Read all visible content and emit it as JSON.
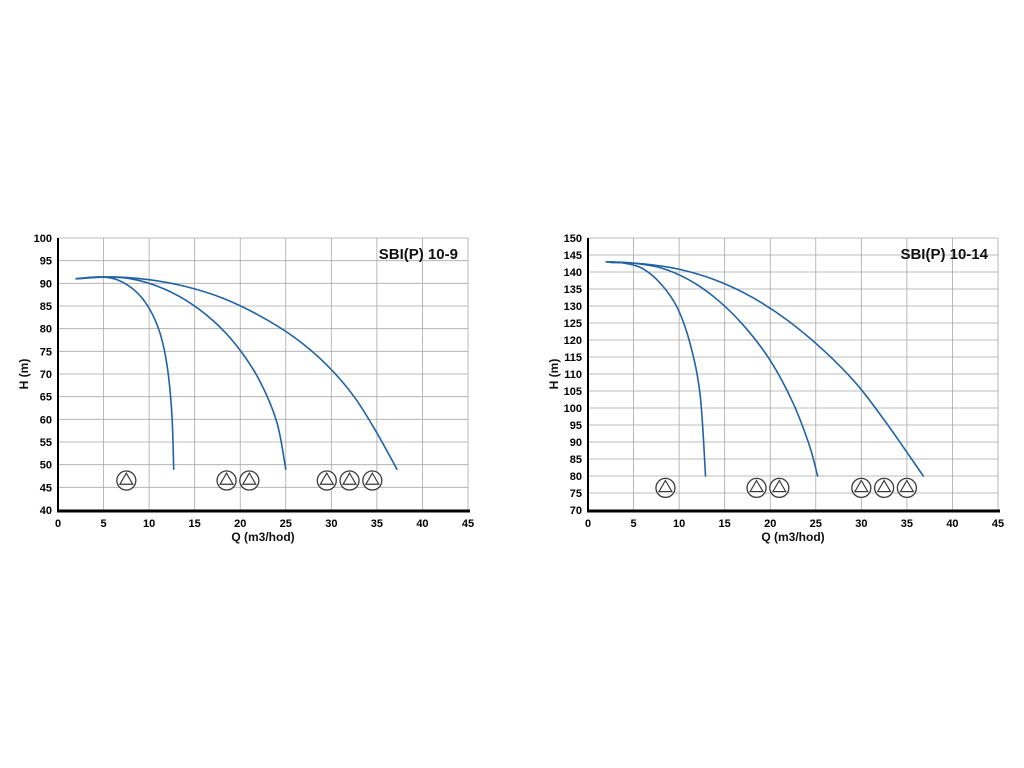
{
  "page": {
    "background": "#ffffff"
  },
  "chart_data": [
    {
      "id": "sbi-p-10-9",
      "type": "line",
      "title": "SBI(P) 10-9",
      "xlabel": "Q (m3/hod)",
      "ylabel": "H (m)",
      "xlim": [
        0,
        45
      ],
      "ylim": [
        40,
        100
      ],
      "xtick_step": 5,
      "ytick_step": 5,
      "grid": true,
      "legend": false,
      "line_color": "#2063a5",
      "grid_color": "#a8a8a8",
      "axis_color": "#000000",
      "series": [
        {
          "name": "1-pump",
          "points": [
            [
              2,
              91
            ],
            [
              4.5,
              91.4
            ],
            [
              6.5,
              90.8
            ],
            [
              8.5,
              88.3
            ],
            [
              10,
              84.5
            ],
            [
              11.2,
              79
            ],
            [
              12,
              71.5
            ],
            [
              12.5,
              61
            ],
            [
              12.7,
              49
            ]
          ]
        },
        {
          "name": "2-pumps",
          "points": [
            [
              2,
              91
            ],
            [
              5,
              91.4
            ],
            [
              8,
              91
            ],
            [
              11,
              89.3
            ],
            [
              14,
              86.3
            ],
            [
              17,
              81.8
            ],
            [
              19.5,
              76.5
            ],
            [
              22,
              69
            ],
            [
              24,
              59.5
            ],
            [
              25,
              49
            ]
          ]
        },
        {
          "name": "3-pumps",
          "points": [
            [
              2,
              91
            ],
            [
              6,
              91.4
            ],
            [
              10,
              90.8
            ],
            [
              14,
              89.3
            ],
            [
              18,
              86.8
            ],
            [
              22,
              83
            ],
            [
              26,
              78
            ],
            [
              29.5,
              72
            ],
            [
              32.5,
              65
            ],
            [
              35,
              57
            ],
            [
              37.2,
              49
            ]
          ]
        }
      ],
      "pump_icons": {
        "y": 46.5,
        "x_groups": [
          [
            7.5
          ],
          [
            18.5,
            21
          ],
          [
            29.5,
            32,
            34.5
          ]
        ]
      }
    },
    {
      "id": "sbi-p-10-14",
      "type": "line",
      "title": "SBI(P) 10-14",
      "xlabel": "Q (m3/hod)",
      "ylabel": "H (m)",
      "xlim": [
        0,
        45
      ],
      "ylim": [
        70,
        150
      ],
      "xtick_step": 5,
      "ytick_step": 5,
      "grid": true,
      "legend": false,
      "line_color": "#2063a5",
      "grid_color": "#a8a8a8",
      "axis_color": "#000000",
      "series": [
        {
          "name": "1-pump",
          "points": [
            [
              2,
              143
            ],
            [
              4,
              142.6
            ],
            [
              6,
              141
            ],
            [
              8,
              136.5
            ],
            [
              9.8,
              129.5
            ],
            [
              11.2,
              119
            ],
            [
              12.3,
              104
            ],
            [
              12.9,
              80
            ]
          ]
        },
        {
          "name": "2-pumps",
          "points": [
            [
              2,
              143
            ],
            [
              5,
              142.6
            ],
            [
              8,
              141.2
            ],
            [
              11,
              137.8
            ],
            [
              14,
              132.3
            ],
            [
              17,
              124.5
            ],
            [
              20,
              114
            ],
            [
              22.5,
              101.5
            ],
            [
              24.3,
              89
            ],
            [
              25.2,
              80
            ]
          ]
        },
        {
          "name": "3-pumps",
          "points": [
            [
              2.5,
              142.8
            ],
            [
              6,
              142.4
            ],
            [
              10,
              140.8
            ],
            [
              14,
              137.6
            ],
            [
              18,
              132.6
            ],
            [
              22,
              125.6
            ],
            [
              26,
              116.6
            ],
            [
              29.5,
              107
            ],
            [
              32.5,
              96.5
            ],
            [
              35,
              87
            ],
            [
              36.8,
              80
            ]
          ]
        }
      ],
      "pump_icons": {
        "y": 76.5,
        "x_groups": [
          [
            8.5
          ],
          [
            18.5,
            21
          ],
          [
            30,
            32.5,
            35
          ]
        ]
      }
    }
  ]
}
